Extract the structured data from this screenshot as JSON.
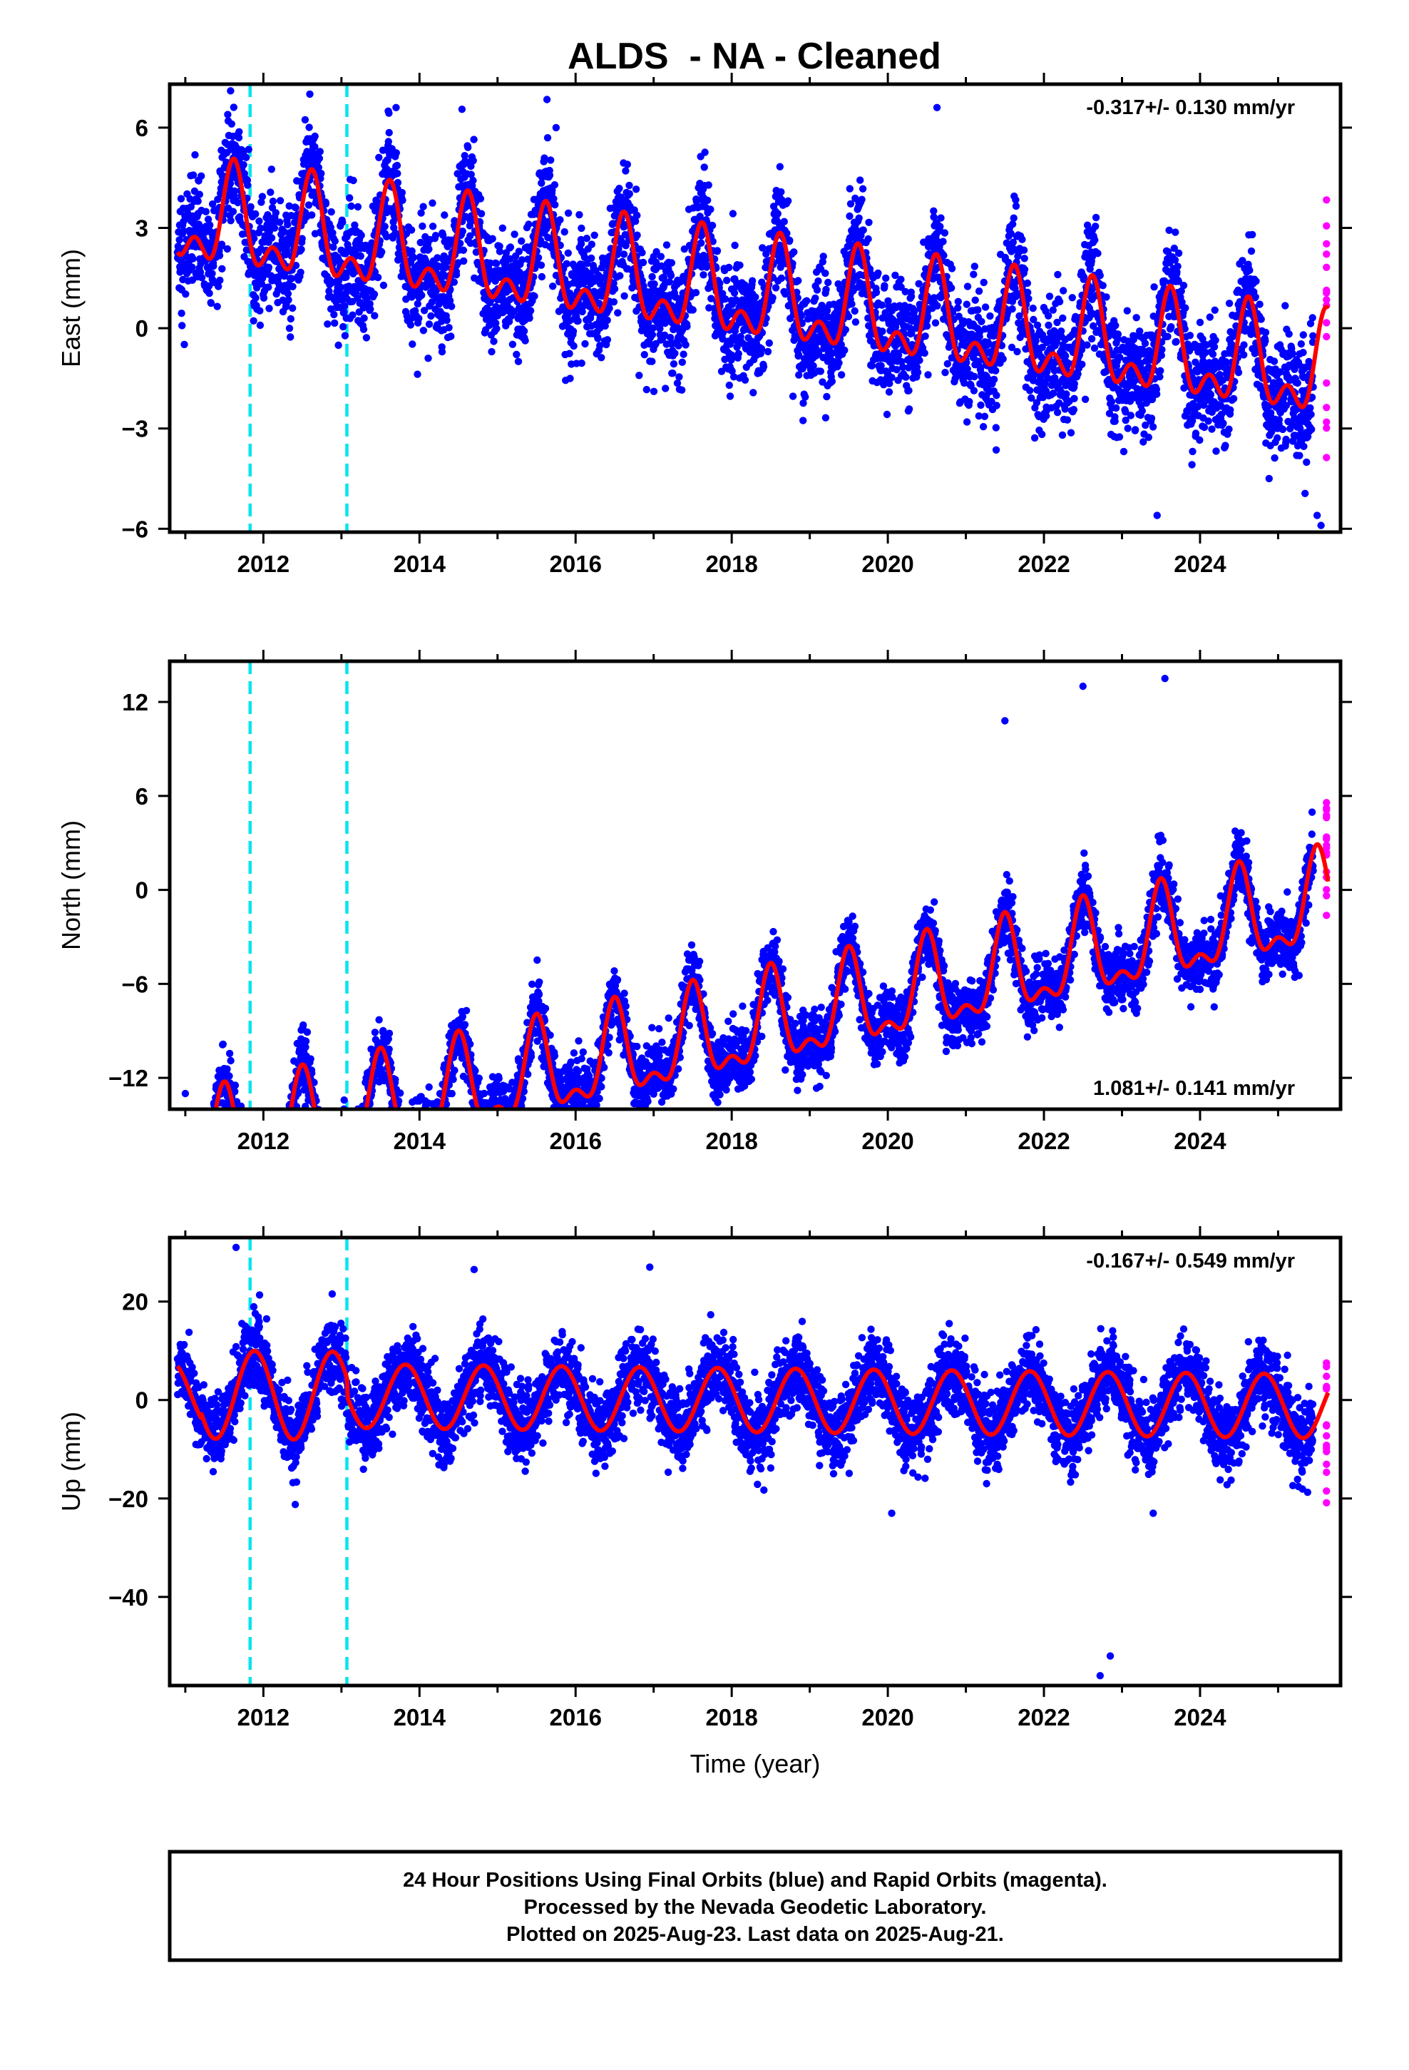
{
  "title": "ALDS  - NA - Cleaned",
  "footer": {
    "line1": "24 Hour Positions Using Final Orbits (blue) and Rapid Orbits (magenta).",
    "line2": "Processed by the Nevada Geodetic Laboratory.",
    "line3": "Plotted on 2025-Aug-23. Last data on 2025-Aug-21."
  },
  "colors": {
    "final_orbits": "#0000ff",
    "rapid_orbits": "#ff00ff",
    "model_fit": "#ff0000",
    "equipment_change": "#00e5ee",
    "axes": "#000000"
  },
  "chart_data": [
    {
      "type": "scatter",
      "component": "east",
      "ylabel": "East (mm)",
      "xlabel": "",
      "xlim": [
        2010.8,
        2025.8
      ],
      "ylim": [
        -6.1,
        7.3
      ],
      "xticks": [
        2012,
        2014,
        2016,
        2018,
        2020,
        2022,
        2024
      ],
      "yticks": [
        -6,
        -3,
        0,
        3,
        6
      ],
      "rate_text": "-0.317+/- 0.130 mm/yr",
      "rate_position": "top-right",
      "equipment_changes": [
        2011.83,
        2013.07
      ],
      "data_start": 2010.9,
      "final_end": 2025.45,
      "rapid_start": 2025.45,
      "data_end": 2025.64,
      "model": {
        "offset": 1.0,
        "rate": -0.317,
        "amp1": 1.25,
        "phase1": 0.62,
        "amp2": 0.8,
        "phase2": 0.62,
        "noise": 0.85
      },
      "steps": [],
      "outliers": [
        [
          2020.63,
          6.6
        ],
        [
          2011.58,
          7.1
        ],
        [
          2011.55,
          6.2
        ],
        [
          2013.7,
          6.6
        ],
        [
          2015.75,
          6.0
        ],
        [
          2023.45,
          -5.6
        ],
        [
          2025.55,
          -5.9
        ],
        [
          2025.5,
          -5.6
        ]
      ]
    },
    {
      "type": "scatter",
      "component": "north",
      "ylabel": "North (mm)",
      "xlabel": "",
      "xlim": [
        2010.8,
        2025.8
      ],
      "ylim": [
        -14.0,
        14.6
      ],
      "xticks": [
        2012,
        2014,
        2016,
        2018,
        2020,
        2022,
        2024
      ],
      "yticks": [
        -12,
        -6,
        0,
        6,
        12
      ],
      "rate_text": "1.081+/- 0.141 mm/yr",
      "rate_position": "bottom-right",
      "equipment_changes": [
        2011.83,
        2013.07
      ],
      "data_start": 2010.9,
      "final_end": 2025.45,
      "rapid_start": 2025.45,
      "data_end": 2025.64,
      "model": {
        "offset": -9.2,
        "rate": 1.081,
        "amp1": 2.7,
        "phase1": 0.5,
        "amp2": 1.3,
        "phase2": 0.5,
        "noise": 1.0
      },
      "steps": [],
      "outliers": [
        [
          2022.72,
          -3.0
        ],
        [
          2022.85,
          -5.0
        ],
        [
          2011.0,
          -13.0
        ],
        [
          2021.5,
          10.8
        ],
        [
          2022.5,
          13.0
        ],
        [
          2023.55,
          13.5
        ]
      ]
    },
    {
      "type": "scatter",
      "component": "up",
      "ylabel": "Up (mm)",
      "xlabel": "Time (year)",
      "xlim": [
        2010.8,
        2025.8
      ],
      "ylim": [
        -58.0,
        33.0
      ],
      "xticks": [
        2012,
        2014,
        2016,
        2018,
        2020,
        2022,
        2024
      ],
      "yticks": [
        -40,
        -20,
        0,
        20
      ],
      "rate_text": "-0.167+/- 0.549 mm/yr",
      "rate_position": "top-right",
      "equipment_changes": [
        2011.83,
        2013.07
      ],
      "data_start": 2010.9,
      "final_end": 2025.45,
      "rapid_start": 2025.45,
      "data_end": 2025.64,
      "model": {
        "offset": 0.0,
        "rate": -0.167,
        "amp1": 6.5,
        "phase1": 0.82,
        "amp2": 0.0,
        "phase2": 0.0,
        "noise": 3.8
      },
      "steps": [
        [
          2011.2,
          2013.07,
          4.0
        ]
      ],
      "outliers": [
        [
          2022.72,
          -56.0
        ],
        [
          2022.85,
          -52.0
        ],
        [
          2011.65,
          31.0
        ],
        [
          2016.95,
          27.0
        ],
        [
          2014.7,
          26.5
        ],
        [
          2023.4,
          -23.0
        ],
        [
          2020.05,
          -23.0
        ]
      ]
    }
  ]
}
